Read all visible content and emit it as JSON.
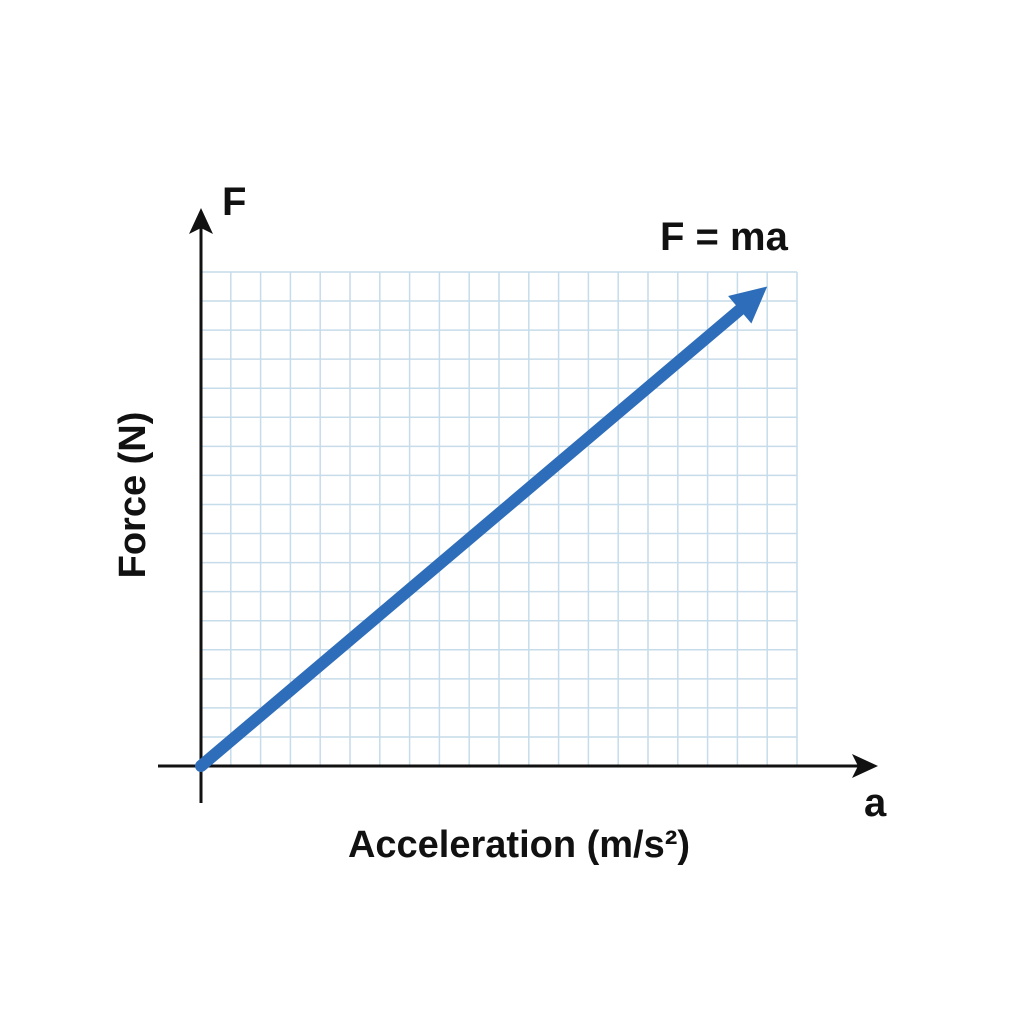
{
  "chart_data": {
    "type": "line",
    "title": "",
    "xlabel": "Acceleration (m/s²)",
    "ylabel": "Force (N)",
    "x_axis_symbol": "a",
    "y_axis_symbol": "F",
    "xlim": [
      0,
      20
    ],
    "ylim": [
      0,
      17
    ],
    "grid": true,
    "series": [
      {
        "name": "",
        "x": [
          0,
          19
        ],
        "y": [
          0,
          16.5
        ],
        "style": "arrow"
      }
    ],
    "annotations": [
      {
        "text": "F = ma"
      }
    ],
    "colors": {
      "series": "#2e6db9",
      "grid": "#c6dcea",
      "axes": "#111111"
    }
  }
}
